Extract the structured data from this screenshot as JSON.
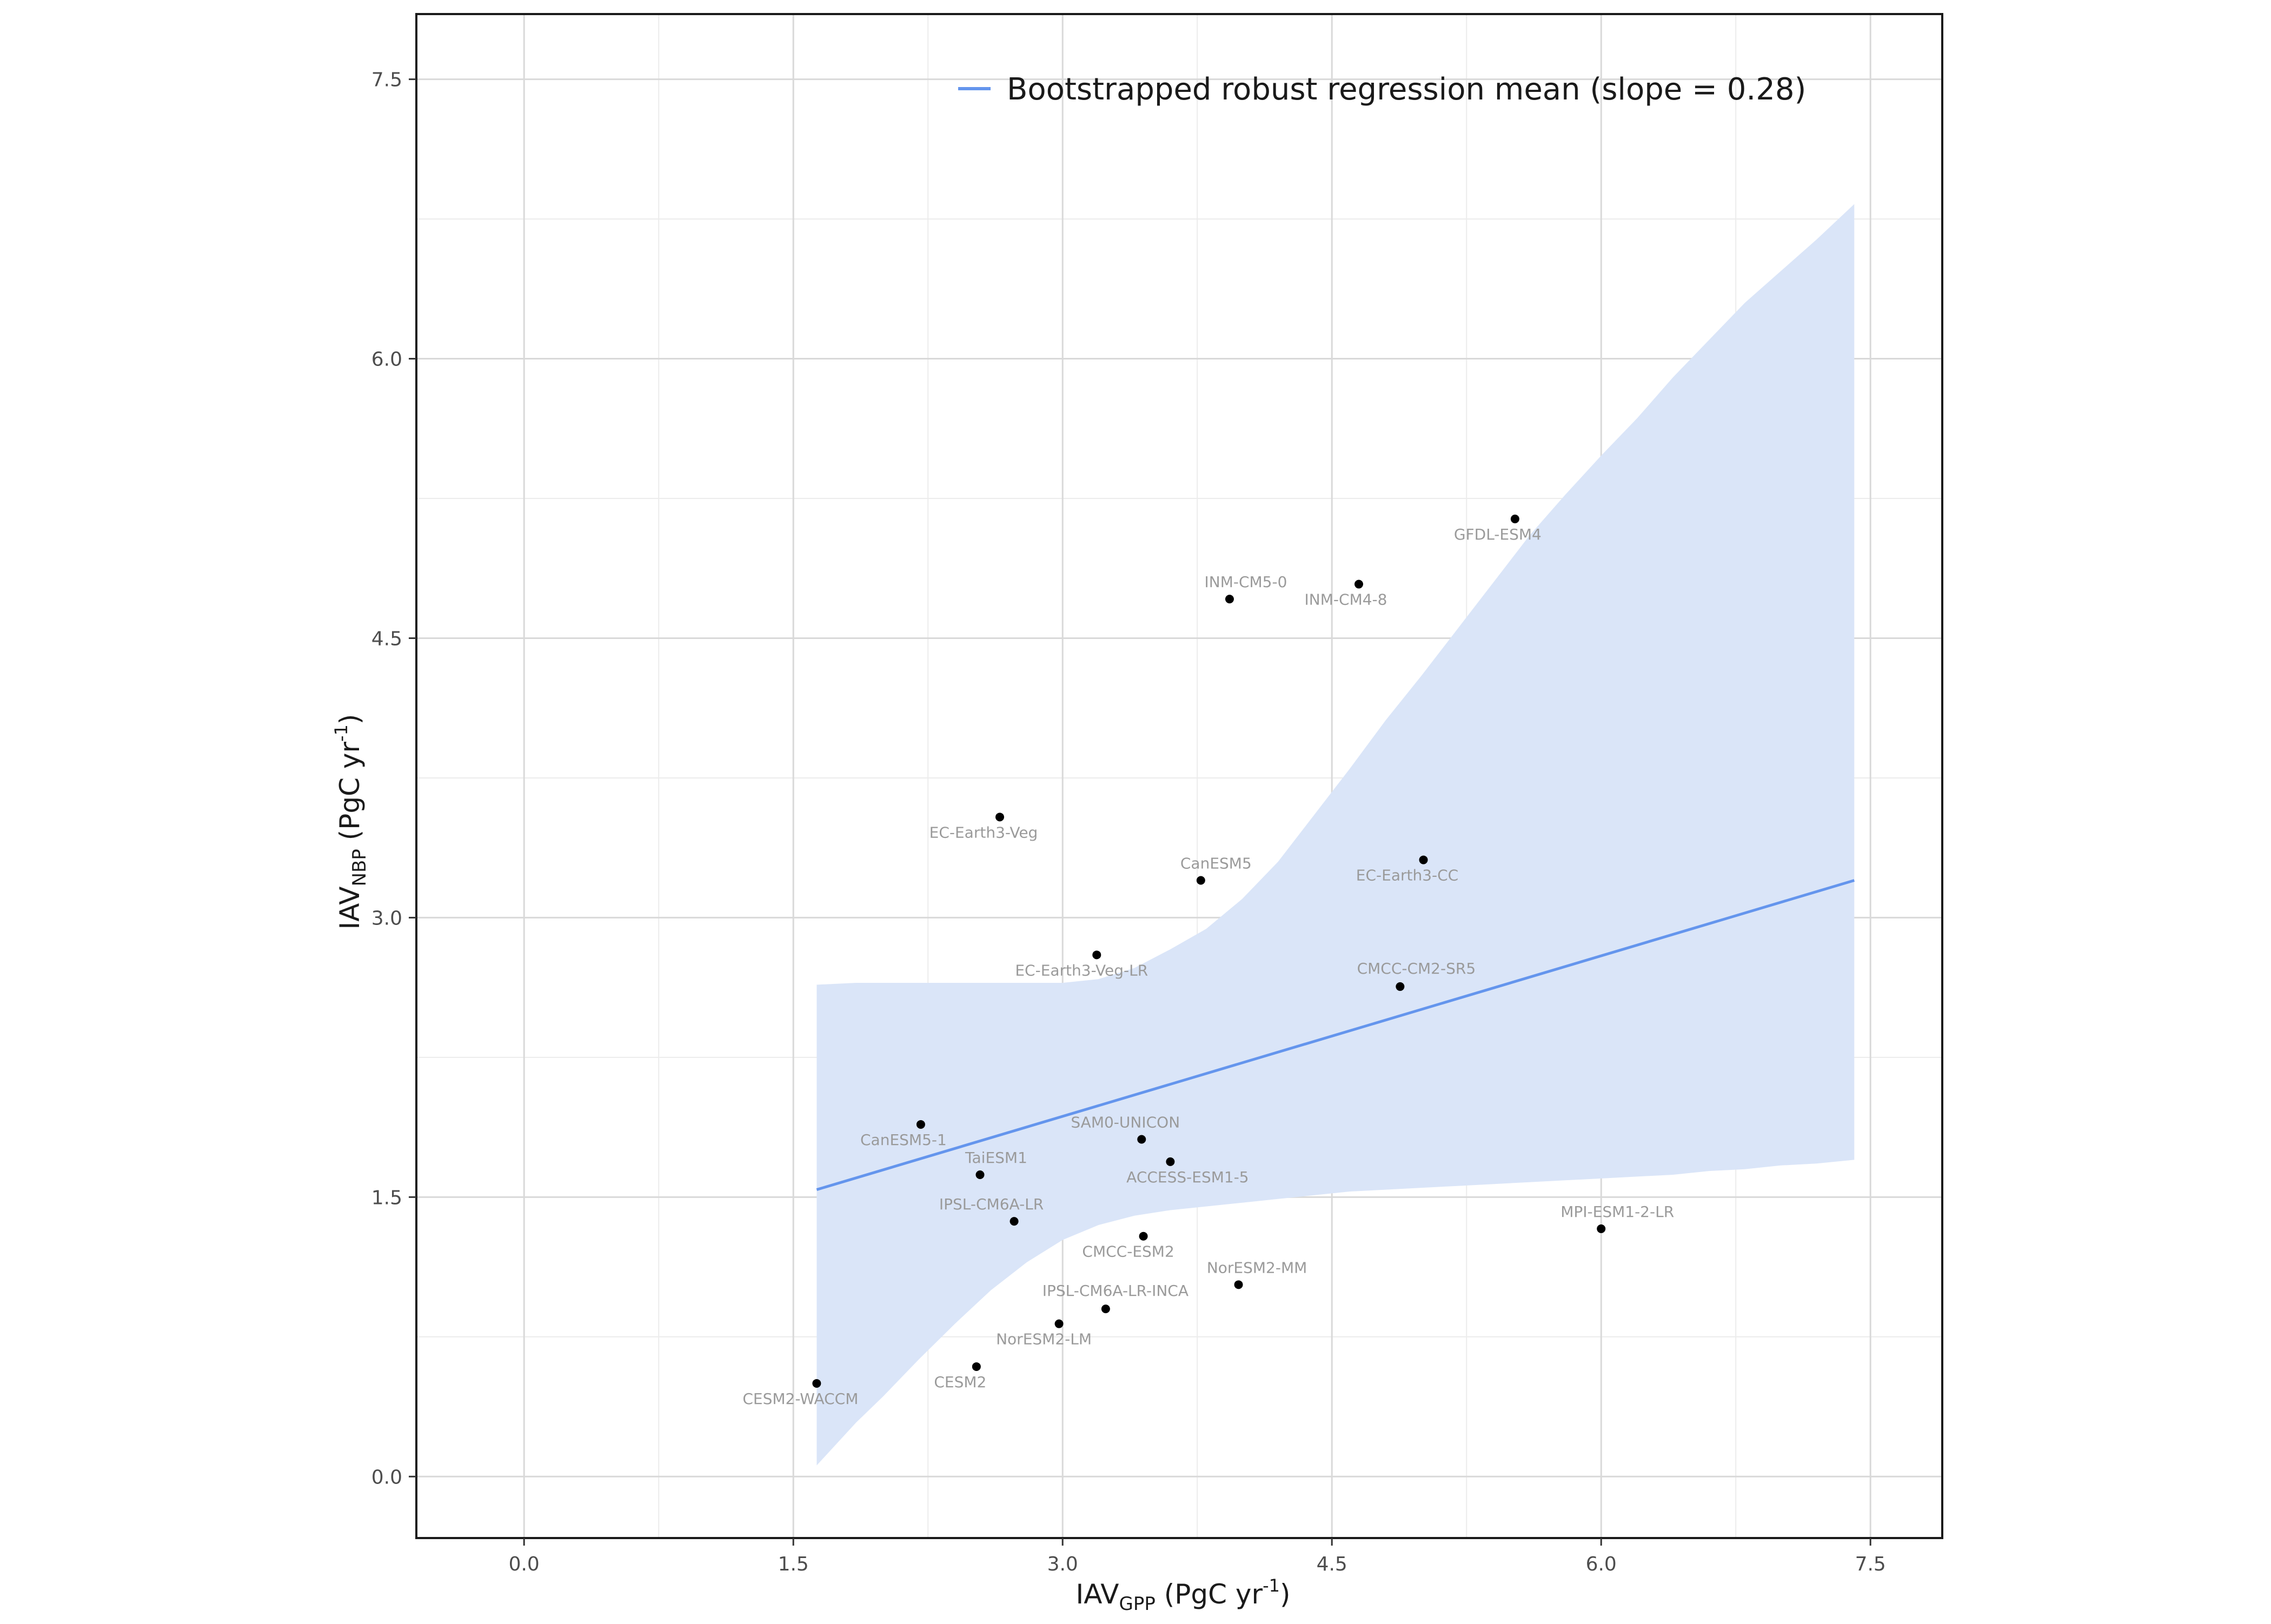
{
  "chart_data": {
    "type": "scatter",
    "title": "",
    "xlabel": {
      "base": "IAV",
      "sub": "GPP",
      "unit_pre": " (PgC yr",
      "sup": "-1",
      "unit_post": ")"
    },
    "ylabel": {
      "base": "IAV",
      "sub": "NBP",
      "unit_pre": " (PgC yr",
      "sup": "-1",
      "unit_post": ")"
    },
    "xlim": [
      -0.6,
      7.9
    ],
    "ylim": [
      -0.33,
      7.85
    ],
    "x_ticks": [
      0.0,
      1.5,
      3.0,
      4.5,
      6.0,
      7.5
    ],
    "x_tick_labels": [
      "0.0",
      "1.5",
      "3.0",
      "4.5",
      "6.0",
      "7.5"
    ],
    "y_ticks": [
      0.0,
      1.5,
      3.0,
      4.5,
      6.0,
      7.5
    ],
    "y_tick_labels": [
      "0.0",
      "1.5",
      "3.0",
      "4.5",
      "6.0",
      "7.5"
    ],
    "x_minor_ticks": [
      0.75,
      2.25,
      3.75,
      5.25,
      6.75
    ],
    "y_minor_ticks": [
      0.75,
      2.25,
      3.75,
      5.25,
      6.75
    ],
    "grid": true,
    "legend": {
      "position": "top-center",
      "entries": [
        "Bootstrapped robust regression mean (slope = 0.28)"
      ]
    },
    "colors": {
      "regression_line": "#6495ed",
      "confidence_band": "#dae5f8",
      "points": "#000000",
      "point_labels": "#9a9a9a",
      "grid_major": "#d9d9d9",
      "grid_minor": "#ececec"
    },
    "points": [
      {
        "model": "CESM2-WACCM",
        "x": 1.63,
        "y": 0.5
      },
      {
        "model": "CESM2",
        "x": 2.52,
        "y": 0.59
      },
      {
        "model": "NorESM2-LM",
        "x": 2.98,
        "y": 0.82
      },
      {
        "model": "IPSL-CM6A-LR-INCA",
        "x": 3.24,
        "y": 0.9
      },
      {
        "model": "NorESM2-MM",
        "x": 3.98,
        "y": 1.03
      },
      {
        "model": "CMCC-ESM2",
        "x": 3.45,
        "y": 1.29
      },
      {
        "model": "IPSL-CM6A-LR",
        "x": 2.73,
        "y": 1.37
      },
      {
        "model": "TaiESM1",
        "x": 2.54,
        "y": 1.62
      },
      {
        "model": "CanESM5-1",
        "x": 2.21,
        "y": 1.89
      },
      {
        "model": "SAM0-UNICON",
        "x": 3.44,
        "y": 1.81
      },
      {
        "model": "ACCESS-ESM1-5",
        "x": 3.6,
        "y": 1.69
      },
      {
        "model": "MPI-ESM1-2-LR",
        "x": 6.0,
        "y": 1.33
      },
      {
        "model": "EC-Earth3-Veg-LR",
        "x": 3.19,
        "y": 2.8
      },
      {
        "model": "CMCC-CM2-SR5",
        "x": 4.88,
        "y": 2.63
      },
      {
        "model": "CanESM5",
        "x": 3.77,
        "y": 3.2
      },
      {
        "model": "EC-Earth3-CC",
        "x": 5.01,
        "y": 3.31
      },
      {
        "model": "EC-Earth3-Veg",
        "x": 2.65,
        "y": 3.54
      },
      {
        "model": "INM-CM5-0",
        "x": 3.93,
        "y": 4.71
      },
      {
        "model": "INM-CM4-8",
        "x": 4.65,
        "y": 4.79
      },
      {
        "model": "GFDL-ESM4",
        "x": 5.52,
        "y": 5.14
      }
    ],
    "regression_line": {
      "x": [
        1.63,
        7.41
      ],
      "y": [
        1.54,
        3.2
      ],
      "slope": 0.28
    },
    "confidence_band": {
      "x": [
        1.63,
        1.85,
        2.0,
        2.2,
        2.4,
        2.6,
        2.8,
        3.0,
        3.2,
        3.4,
        3.6,
        3.8,
        4.0,
        4.2,
        4.4,
        4.6,
        4.8,
        5.0,
        5.2,
        5.4,
        5.6,
        5.8,
        6.0,
        6.2,
        6.4,
        6.6,
        6.8,
        7.0,
        7.2,
        7.41
      ],
      "lower": [
        0.06,
        0.29,
        0.43,
        0.63,
        0.82,
        1.0,
        1.15,
        1.27,
        1.35,
        1.4,
        1.43,
        1.45,
        1.47,
        1.49,
        1.51,
        1.53,
        1.54,
        1.55,
        1.56,
        1.57,
        1.58,
        1.59,
        1.6,
        1.61,
        1.62,
        1.64,
        1.65,
        1.67,
        1.68,
        1.7
      ],
      "upper": [
        2.64,
        2.65,
        2.65,
        2.65,
        2.65,
        2.65,
        2.65,
        2.65,
        2.67,
        2.73,
        2.83,
        2.94,
        3.1,
        3.3,
        3.55,
        3.8,
        4.06,
        4.3,
        4.55,
        4.8,
        5.05,
        5.27,
        5.48,
        5.68,
        5.9,
        6.1,
        6.3,
        6.47,
        6.64,
        6.83
      ]
    }
  }
}
